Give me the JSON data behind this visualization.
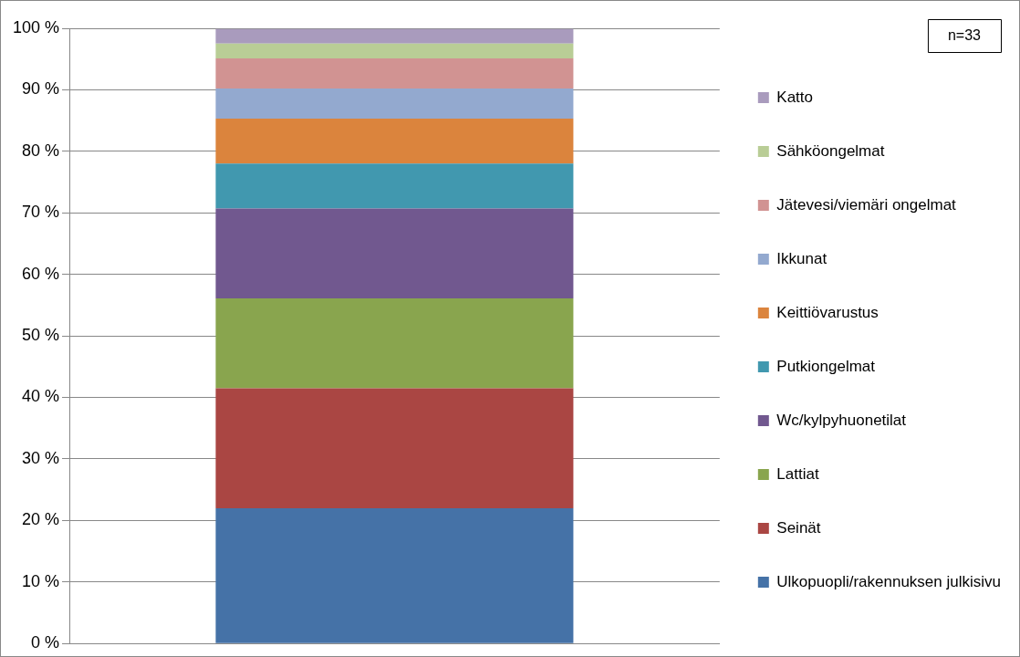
{
  "chart_data": {
    "type": "bar",
    "stacked": true,
    "categories": [
      null
    ],
    "series": [
      {
        "name": "Ulkopuopli/rakennuksen julkisivu",
        "color": "#4572a7",
        "values": [
          22.0
        ]
      },
      {
        "name": "Seinät",
        "color": "#aa4643",
        "values": [
          19.5
        ]
      },
      {
        "name": "Lattiat",
        "color": "#89a54e",
        "values": [
          14.6
        ]
      },
      {
        "name": "Wc/kylpyhuonetilat",
        "color": "#71588f",
        "values": [
          14.6
        ]
      },
      {
        "name": "Putkiongelmat",
        "color": "#4198af",
        "values": [
          7.3
        ]
      },
      {
        "name": "Keittiövarustus",
        "color": "#db843d",
        "values": [
          7.3
        ]
      },
      {
        "name": "Ikkunat",
        "color": "#93a9cf",
        "values": [
          4.9
        ]
      },
      {
        "name": "Jätevesi/viemäri ongelmat",
        "color": "#d19392",
        "values": [
          4.9
        ]
      },
      {
        "name": "Sähköongelmat",
        "color": "#b9cd96",
        "values": [
          2.4
        ]
      },
      {
        "name": "Katto",
        "color": "#a99bbd",
        "values": [
          2.4
        ]
      }
    ],
    "ylim": [
      0,
      100
    ],
    "yticks": [
      {
        "value": 0,
        "label": "0 %"
      },
      {
        "value": 10,
        "label": "10 %"
      },
      {
        "value": 20,
        "label": "20 %"
      },
      {
        "value": 30,
        "label": "30 %"
      },
      {
        "value": 40,
        "label": "40 %"
      },
      {
        "value": 50,
        "label": "50 %"
      },
      {
        "value": 60,
        "label": "60 %"
      },
      {
        "value": 70,
        "label": "70 %"
      },
      {
        "value": 80,
        "label": "80 %"
      },
      {
        "value": 90,
        "label": "90 %"
      },
      {
        "value": 100,
        "label": "100 %"
      }
    ],
    "grid": "y",
    "legend": "right",
    "annotations": [
      "n=33"
    ]
  }
}
